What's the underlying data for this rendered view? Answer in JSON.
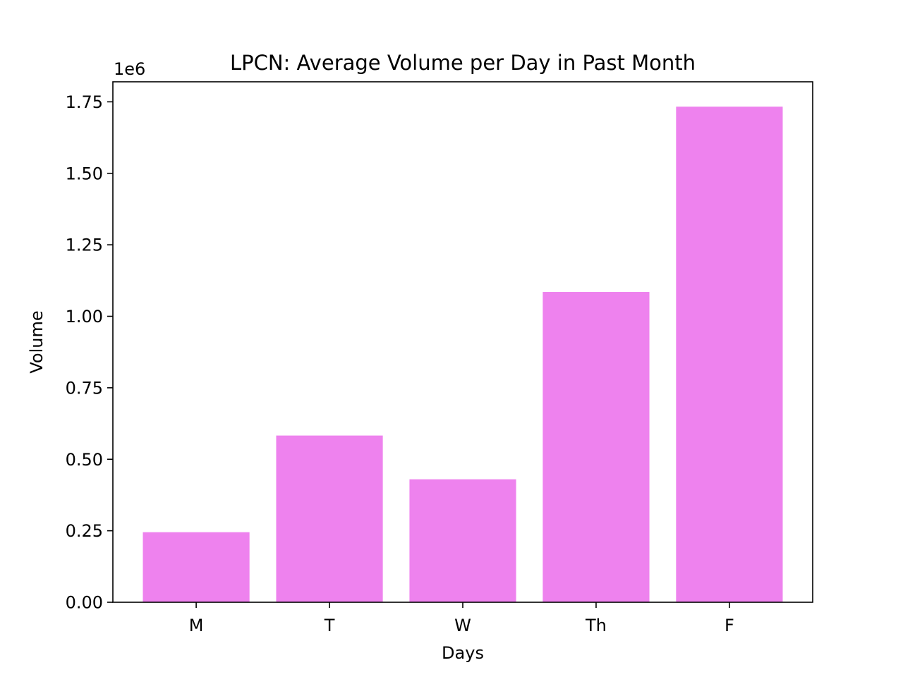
{
  "chart_data": {
    "type": "bar",
    "title": "LPCN: Average Volume per Day in Past Month",
    "xlabel": "Days",
    "ylabel": "Volume",
    "y_offset_label": "1e6",
    "y_scale_factor": 1000000,
    "categories": [
      "M",
      "T",
      "W",
      "Th",
      "F"
    ],
    "values": [
      245000,
      583000,
      430000,
      1085000,
      1733000
    ],
    "ylim": [
      0,
      1820000
    ],
    "yticks": [
      0,
      250000,
      500000,
      750000,
      1000000,
      1250000,
      1500000,
      1750000
    ],
    "ytick_labels": [
      "0.00",
      "0.25",
      "0.50",
      "0.75",
      "1.00",
      "1.25",
      "1.50",
      "1.75"
    ],
    "bar_color": "#ee82ee",
    "grid": false,
    "legend": "none"
  }
}
